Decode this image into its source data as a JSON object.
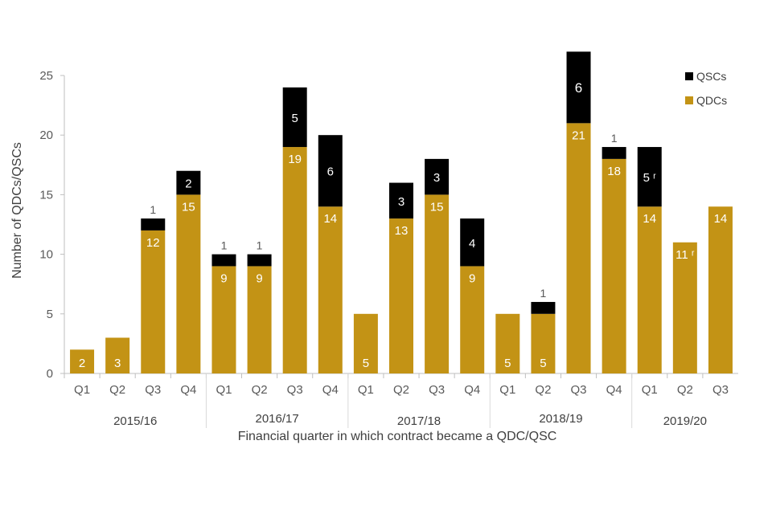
{
  "chart_data": {
    "type": "bar",
    "stacked": true,
    "title": "",
    "xlabel": "Financial quarter in which contract became a QDC/QSC",
    "ylabel": "Number of QDCs/QSCs",
    "ylim": [
      0,
      25
    ],
    "yticks": [
      "0",
      "5",
      "10",
      "15",
      "20",
      "25"
    ],
    "legend_position": "top-right",
    "categories": [
      "Q1",
      "Q2",
      "Q3",
      "Q4",
      "Q1",
      "Q2",
      "Q3",
      "Q4",
      "Q1",
      "Q2",
      "Q3",
      "Q4",
      "Q1",
      "Q2",
      "Q3",
      "Q4",
      "Q1",
      "Q2",
      "Q3"
    ],
    "groups": [
      {
        "label": "2015/16",
        "count": 4
      },
      {
        "label": "2016/17",
        "count": 4
      },
      {
        "label": "2017/18",
        "count": 4
      },
      {
        "label": "2018/19",
        "count": 4
      },
      {
        "label": "2019/20",
        "count": 3
      }
    ],
    "series": [
      {
        "name": "QDCs",
        "color": "#C39315",
        "values": [
          2,
          3,
          12,
          15,
          9,
          9,
          19,
          14,
          5,
          13,
          15,
          9,
          5,
          5,
          21,
          18,
          14,
          11,
          14
        ],
        "labels": [
          "2",
          "3",
          "12",
          "15",
          "9",
          "9",
          "19",
          "14",
          "5",
          "13",
          "15",
          "9",
          "5",
          "5",
          "21",
          "18",
          "14",
          "11 ʳ",
          "14"
        ]
      },
      {
        "name": "QSCs",
        "color": "#000000",
        "values": [
          0,
          0,
          1,
          2,
          1,
          1,
          5,
          6,
          0,
          3,
          3,
          4,
          0,
          1,
          6,
          1,
          5,
          0,
          0
        ],
        "labels": [
          "",
          "",
          "1",
          "2",
          "1",
          "1",
          "5",
          "6",
          "",
          "3",
          "3",
          "4",
          "",
          "1",
          "6",
          "1",
          "5 ʳ",
          "",
          ""
        ]
      }
    ]
  }
}
